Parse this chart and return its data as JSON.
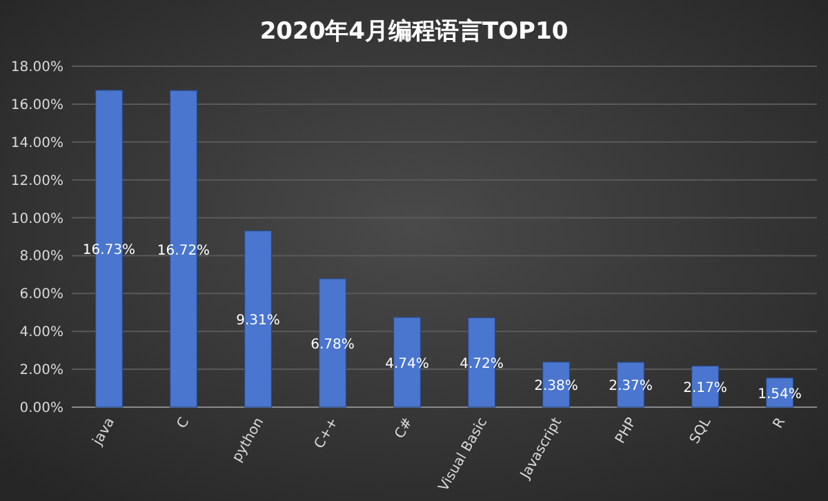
{
  "chart_data": {
    "type": "bar",
    "title": "2020年4月编程语言TOP10",
    "categories": [
      "java",
      "C",
      "python",
      "C++",
      "C#",
      "Visual Basic",
      "Javascript",
      "PHP",
      "SQL",
      "R"
    ],
    "values": [
      16.73,
      16.72,
      9.31,
      6.78,
      4.74,
      4.72,
      2.38,
      2.37,
      2.17,
      1.54
    ],
    "value_labels": [
      "16.73%",
      "16.72%",
      "9.31%",
      "6.78%",
      "4.74%",
      "4.72%",
      "2.38%",
      "2.37%",
      "2.17%",
      "1.54%"
    ],
    "color": "#4a76cf",
    "ylim": [
      0,
      18
    ],
    "yticks": [
      {
        "value": 0,
        "label": "0.00%"
      },
      {
        "value": 2,
        "label": "2.00%"
      },
      {
        "value": 4,
        "label": "4.00%"
      },
      {
        "value": 6,
        "label": "6.00%"
      },
      {
        "value": 8,
        "label": "8.00%"
      },
      {
        "value": 10,
        "label": "10.00%"
      },
      {
        "value": 12,
        "label": "12.00%"
      },
      {
        "value": 14,
        "label": "14.00%"
      },
      {
        "value": 16,
        "label": "16.00%"
      },
      {
        "value": 18,
        "label": "18.00%"
      }
    ],
    "grid": "y"
  }
}
